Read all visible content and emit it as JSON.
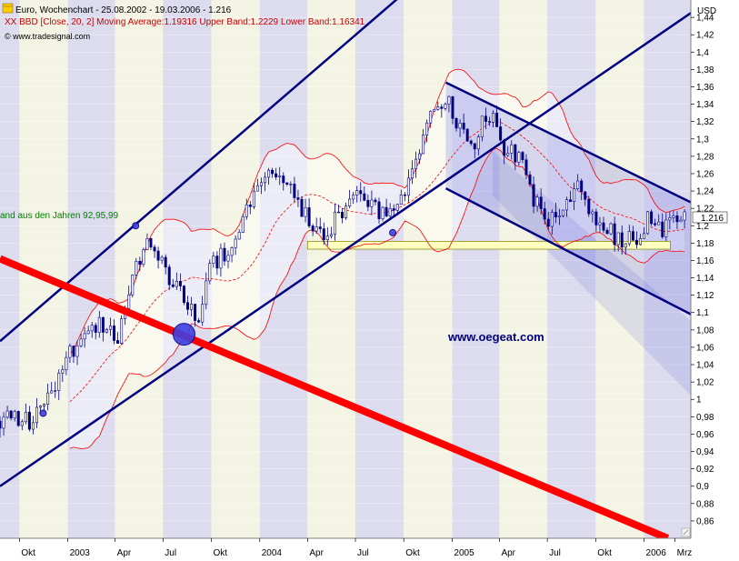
{
  "header": {
    "title": "Euro, Wochenchart - 25.08.2002 - 19.03.2006 - 1.216",
    "indicator": "XX BBD [Close, 20, 2] Moving Average:1.19316 Upper Band:1.2229 Lower Band:1.16341",
    "source": "© www.tradesignal.com"
  },
  "annotations": {
    "left_note": "and aus den Jahren 92,95,99",
    "watermark": "www.oegeat.com"
  },
  "colors": {
    "stripe_light": "#f4f4e4",
    "stripe_dark": "#dcdcee",
    "candle": "#000080",
    "channel": "#000080",
    "trend_red": "#ff0000",
    "bollinger": "#ff0000",
    "support_fill": "#ffffc0",
    "last_bg": "#ffffff"
  },
  "chart_data": {
    "type": "candlestick",
    "ylabel": "USD",
    "ylim": [
      0.84,
      1.46
    ],
    "xlim": [
      "2002-08-25",
      "2006-03-31"
    ],
    "yticks": [
      0.86,
      0.88,
      0.9,
      0.92,
      0.94,
      0.96,
      0.98,
      1,
      1.02,
      1.04,
      1.06,
      1.08,
      1.1,
      1.12,
      1.14,
      1.16,
      1.18,
      1.2,
      1.22,
      1.24,
      1.26,
      1.28,
      1.3,
      1.32,
      1.34,
      1.36,
      1.38,
      1.4,
      1.42,
      1.44
    ],
    "ytick_labels": [
      "0,86",
      "0,88",
      "0,9",
      "0,92",
      "0,94",
      "0,96",
      "0,98",
      "1",
      "1,02",
      "1,04",
      "1,06",
      "1,08",
      "1,1",
      "1,12",
      "1,14",
      "1,16",
      "1,18",
      "1,2",
      "1,22",
      "1,24",
      "1,26",
      "1,28",
      "1,3",
      "1,32",
      "1,34",
      "1,36",
      "1,38",
      "1,4",
      "1,42",
      "1,44"
    ],
    "xticks": [
      {
        "date": "2002-10-01",
        "label": "Okt"
      },
      {
        "date": "2003-01-01",
        "label": "2003"
      },
      {
        "date": "2003-04-01",
        "label": "Apr"
      },
      {
        "date": "2003-07-01",
        "label": "Jul"
      },
      {
        "date": "2003-10-01",
        "label": "Okt"
      },
      {
        "date": "2004-01-01",
        "label": "2004"
      },
      {
        "date": "2004-04-01",
        "label": "Apr"
      },
      {
        "date": "2004-07-01",
        "label": "Jul"
      },
      {
        "date": "2004-10-01",
        "label": "Okt"
      },
      {
        "date": "2005-01-01",
        "label": "2005"
      },
      {
        "date": "2005-04-01",
        "label": "Apr"
      },
      {
        "date": "2005-07-01",
        "label": "Jul"
      },
      {
        "date": "2005-10-01",
        "label": "Okt"
      },
      {
        "date": "2006-01-01",
        "label": "2006"
      },
      {
        "date": "2006-03-01",
        "label": "Mrz"
      }
    ],
    "last_price": {
      "date": "2006-03-19",
      "value": 1.216,
      "label": "1.216"
    },
    "close_path": [
      [
        "2002-08-25",
        0.975
      ],
      [
        "2002-09-22",
        0.98
      ],
      [
        "2002-10-20",
        0.975
      ],
      [
        "2002-11-17",
        1.005
      ],
      [
        "2002-12-15",
        1.02
      ],
      [
        "2003-01-12",
        1.06
      ],
      [
        "2003-02-09",
        1.08
      ],
      [
        "2003-03-09",
        1.085
      ],
      [
        "2003-04-06",
        1.07
      ],
      [
        "2003-05-04",
        1.15
      ],
      [
        "2003-06-01",
        1.18
      ],
      [
        "2003-06-29",
        1.155
      ],
      [
        "2003-07-27",
        1.13
      ],
      [
        "2003-08-24",
        1.1
      ],
      [
        "2003-09-07",
        1.09
      ],
      [
        "2003-09-28",
        1.155
      ],
      [
        "2003-10-26",
        1.17
      ],
      [
        "2003-11-23",
        1.19
      ],
      [
        "2003-12-21",
        1.24
      ],
      [
        "2004-01-18",
        1.27
      ],
      [
        "2004-02-15",
        1.26
      ],
      [
        "2004-03-14",
        1.22
      ],
      [
        "2004-04-11",
        1.2
      ],
      [
        "2004-05-09",
        1.19
      ],
      [
        "2004-06-06",
        1.22
      ],
      [
        "2004-07-04",
        1.23
      ],
      [
        "2004-08-01",
        1.22
      ],
      [
        "2004-08-29",
        1.21
      ],
      [
        "2004-09-26",
        1.23
      ],
      [
        "2004-10-24",
        1.27
      ],
      [
        "2004-11-21",
        1.32
      ],
      [
        "2004-12-19",
        1.35
      ],
      [
        "2005-01-16",
        1.31
      ],
      [
        "2005-02-13",
        1.3
      ],
      [
        "2005-03-13",
        1.33
      ],
      [
        "2005-04-10",
        1.29
      ],
      [
        "2005-05-08",
        1.28
      ],
      [
        "2005-06-05",
        1.23
      ],
      [
        "2005-07-03",
        1.2
      ],
      [
        "2005-07-31",
        1.215
      ],
      [
        "2005-08-28",
        1.24
      ],
      [
        "2005-09-25",
        1.21
      ],
      [
        "2005-10-23",
        1.2
      ],
      [
        "2005-11-20",
        1.175
      ],
      [
        "2005-12-18",
        1.19
      ],
      [
        "2006-01-15",
        1.21
      ],
      [
        "2006-02-12",
        1.195
      ],
      [
        "2006-03-19",
        1.216
      ]
    ],
    "support_zone": {
      "x": [
        "2004-04-01",
        "2006-02-20"
      ],
      "y": [
        1.173,
        1.182
      ]
    },
    "channels": [
      {
        "from": [
          "2002-08-25",
          1.067
        ],
        "to": [
          "2004-10-15",
          1.475
        ]
      },
      {
        "from": [
          "2002-08-25",
          0.9
        ],
        "to": [
          "2006-03-31",
          1.445
        ]
      },
      {
        "from": [
          "2004-12-20",
          1.365
        ],
        "to": [
          "2006-03-31",
          1.227
        ]
      },
      {
        "from": [
          "2004-12-20",
          1.243
        ],
        "to": [
          "2006-03-31",
          1.098
        ]
      }
    ],
    "trend_red": {
      "from": [
        "2002-08-25",
        1.162
      ],
      "to": [
        "2006-02-15",
        0.84
      ]
    },
    "markers": [
      {
        "date": "2003-08-10",
        "value": 1.075,
        "size": "large"
      },
      {
        "date": "2002-11-15",
        "value": 0.984,
        "size": "small"
      },
      {
        "date": "2003-05-10",
        "value": 1.2,
        "size": "small"
      },
      {
        "date": "2004-09-10",
        "value": 1.192,
        "size": "small"
      }
    ]
  }
}
